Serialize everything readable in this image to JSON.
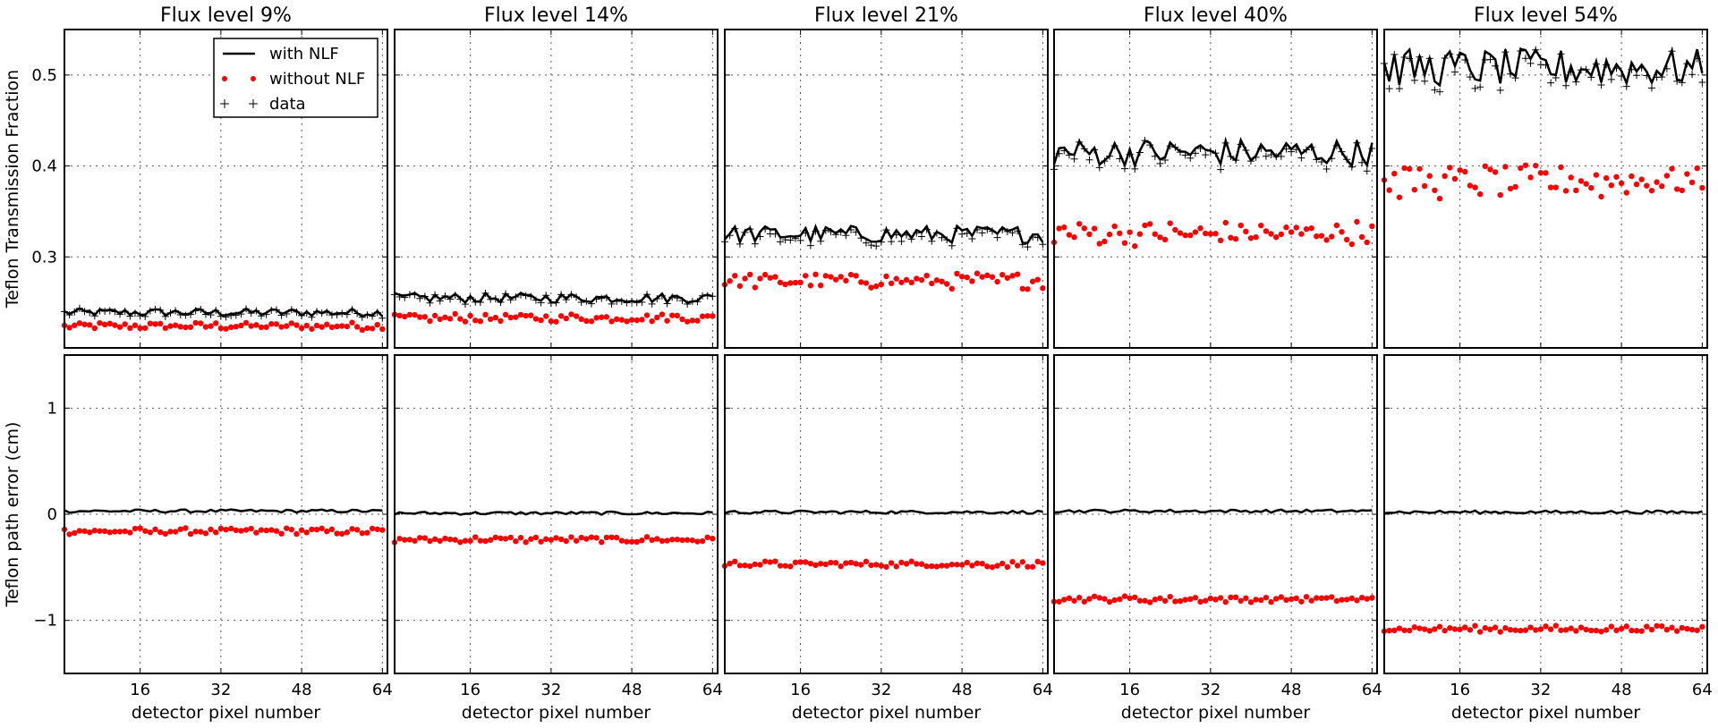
{
  "chart_data": {
    "type": "line",
    "layout": "2 rows x 5 columns of panels",
    "columns": [
      {
        "title": "Flux level 9%",
        "top": {
          "data": 0.238,
          "with_nlf": 0.239,
          "without_nlf": 0.224
        },
        "bottom": {
          "with_nlf": 0.03,
          "without_nlf": -0.16
        }
      },
      {
        "title": "Flux level 14%",
        "top": {
          "data": 0.254,
          "with_nlf": 0.255,
          "without_nlf": 0.233
        },
        "bottom": {
          "with_nlf": 0.01,
          "without_nlf": -0.24
        }
      },
      {
        "title": "Flux level 21%",
        "top": {
          "data": 0.322,
          "with_nlf": 0.325,
          "without_nlf": 0.274
        },
        "bottom": {
          "with_nlf": 0.02,
          "without_nlf": -0.47
        }
      },
      {
        "title": "Flux level 40%",
        "top": {
          "data": 0.412,
          "with_nlf": 0.415,
          "without_nlf": 0.326
        },
        "bottom": {
          "with_nlf": 0.03,
          "without_nlf": -0.8
        }
      },
      {
        "title": "Flux level 54%",
        "top": {
          "data": 0.503,
          "with_nlf": 0.508,
          "without_nlf": 0.383
        },
        "bottom": {
          "with_nlf": 0.02,
          "without_nlf": -1.08
        }
      }
    ],
    "rows": [
      {
        "ylabel": "Teflon Transmission Fraction",
        "ylim": [
          0.2,
          0.55
        ],
        "yticks": [
          0.3,
          0.4,
          0.5
        ],
        "ytick_labels": [
          "0.3",
          "0.4",
          "0.5"
        ]
      },
      {
        "ylabel": "Teflon path error (cm)",
        "ylim": [
          -1.5,
          1.5
        ],
        "yticks": [
          -1,
          0,
          1
        ],
        "ytick_labels": [
          "−1",
          "0",
          "1"
        ]
      }
    ],
    "xlabel": "detector pixel number",
    "xlim": [
      1,
      65
    ],
    "xticks": [
      16,
      32,
      48,
      64
    ],
    "xtick_labels": [
      "16",
      "32",
      "48",
      "64"
    ],
    "x": "detector pixels 1 to 64 (one point per pixel)",
    "grid": true,
    "legend": {
      "location": "upper-right of first panel",
      "entries": [
        {
          "label": "with NLF",
          "style": "black line"
        },
        {
          "label": "without NLF",
          "style": "red dots"
        },
        {
          "label": "data",
          "style": "black plus markers"
        }
      ]
    },
    "colors": {
      "with_nlf": "#000000",
      "without_nlf": "#ff0000",
      "data": "#000000"
    }
  }
}
